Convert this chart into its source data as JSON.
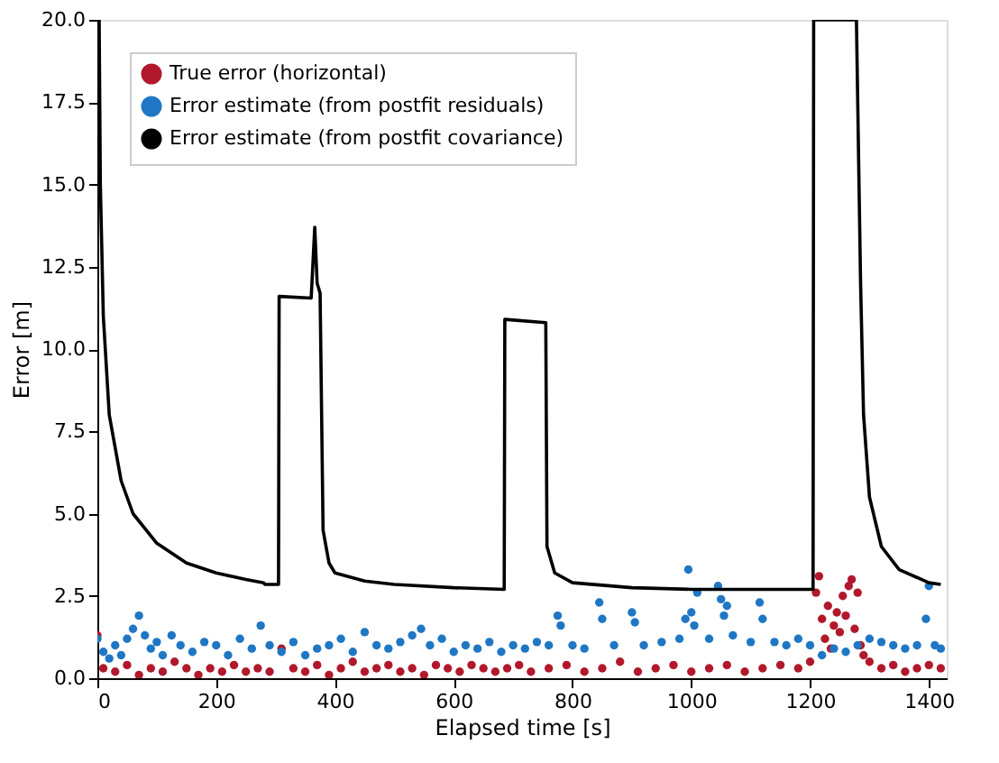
{
  "chart_data": {
    "type": "scatter",
    "xlabel": "Elapsed time [s]",
    "ylabel": "Error [m]",
    "xlim": [
      0,
      1430
    ],
    "ylim": [
      0,
      20
    ],
    "xticks": [
      0,
      200,
      400,
      600,
      800,
      1000,
      1200,
      1400
    ],
    "yticks": [
      {
        "value": 0,
        "label": "0.0"
      },
      {
        "value": 2.5,
        "label": "2.5"
      },
      {
        "value": 5,
        "label": "5.0"
      },
      {
        "value": 7.5,
        "label": "7.5"
      },
      {
        "value": 10,
        "label": "10.0"
      },
      {
        "value": 12.5,
        "label": "12.5"
      },
      {
        "value": 15,
        "label": "15.0"
      },
      {
        "value": 17.5,
        "label": "17.5"
      },
      {
        "value": 20,
        "label": "20.0"
      }
    ],
    "grid": false,
    "legend": "top left",
    "series": [
      {
        "name": "True error (horizontal)",
        "marker": "circle",
        "color": "#b2182b",
        "x": [
          0,
          10,
          30,
          50,
          70,
          90,
          110,
          130,
          150,
          170,
          190,
          210,
          230,
          250,
          270,
          290,
          310,
          330,
          350,
          370,
          390,
          410,
          430,
          450,
          470,
          490,
          510,
          530,
          550,
          570,
          590,
          610,
          630,
          650,
          670,
          690,
          710,
          730,
          760,
          790,
          820,
          850,
          880,
          910,
          940,
          970,
          1000,
          1030,
          1060,
          1090,
          1120,
          1150,
          1180,
          1200,
          1210,
          1215,
          1220,
          1225,
          1230,
          1235,
          1240,
          1245,
          1250,
          1255,
          1260,
          1265,
          1270,
          1275,
          1280,
          1285,
          1290,
          1300,
          1320,
          1340,
          1360,
          1380,
          1400,
          1420
        ],
        "values": [
          1.3,
          0.3,
          0.2,
          0.4,
          0.1,
          0.3,
          0.2,
          0.5,
          0.3,
          0.1,
          0.3,
          0.2,
          0.4,
          0.2,
          0.3,
          0.2,
          0.9,
          0.3,
          0.2,
          0.4,
          0.1,
          0.3,
          0.5,
          0.2,
          0.3,
          0.4,
          0.2,
          0.3,
          0.1,
          0.4,
          0.3,
          0.2,
          0.4,
          0.3,
          0.2,
          0.3,
          0.4,
          0.2,
          0.3,
          0.4,
          0.2,
          0.3,
          0.5,
          0.2,
          0.3,
          0.4,
          0.2,
          0.3,
          0.4,
          0.2,
          0.3,
          0.4,
          0.3,
          0.5,
          2.6,
          3.1,
          1.8,
          1.2,
          2.2,
          0.9,
          1.6,
          2.0,
          1.4,
          2.5,
          1.9,
          2.8,
          3.0,
          1.5,
          2.6,
          1.0,
          0.7,
          0.5,
          0.3,
          0.4,
          0.2,
          0.3,
          0.4,
          0.3
        ]
      },
      {
        "name": "Error estimate (from postfit residuals)",
        "marker": "circle",
        "color": "#1f77c4",
        "x": [
          0,
          10,
          20,
          30,
          40,
          50,
          60,
          70,
          80,
          90,
          100,
          110,
          125,
          140,
          160,
          180,
          200,
          220,
          240,
          260,
          275,
          290,
          310,
          330,
          350,
          370,
          390,
          410,
          430,
          450,
          470,
          490,
          510,
          530,
          545,
          560,
          580,
          600,
          620,
          640,
          660,
          680,
          700,
          720,
          740,
          760,
          775,
          780,
          800,
          820,
          845,
          850,
          870,
          900,
          905,
          920,
          950,
          980,
          990,
          995,
          1000,
          1005,
          1010,
          1030,
          1045,
          1050,
          1055,
          1060,
          1070,
          1100,
          1115,
          1120,
          1140,
          1160,
          1180,
          1200,
          1220,
          1240,
          1260,
          1280,
          1300,
          1320,
          1340,
          1360,
          1380,
          1395,
          1400,
          1410,
          1420
        ],
        "values": [
          1.2,
          0.8,
          0.6,
          1.0,
          0.7,
          1.2,
          1.5,
          1.9,
          1.3,
          0.9,
          1.1,
          0.7,
          1.3,
          1.0,
          0.8,
          1.1,
          1.0,
          0.7,
          1.2,
          0.9,
          1.6,
          1.0,
          0.8,
          1.1,
          0.7,
          0.9,
          1.0,
          1.2,
          0.8,
          1.4,
          1.0,
          0.9,
          1.1,
          1.3,
          1.5,
          1.0,
          1.2,
          0.8,
          1.0,
          0.9,
          1.1,
          0.8,
          1.0,
          0.9,
          1.1,
          1.0,
          1.9,
          1.6,
          1.0,
          0.9,
          2.3,
          1.8,
          1.0,
          2.0,
          1.7,
          1.0,
          1.1,
          1.2,
          1.8,
          3.3,
          2.0,
          1.6,
          2.6,
          1.2,
          2.8,
          2.4,
          1.9,
          2.2,
          1.3,
          1.1,
          2.3,
          1.8,
          1.1,
          1.0,
          1.2,
          1.0,
          0.7,
          0.9,
          0.8,
          1.0,
          1.2,
          1.1,
          1.0,
          0.9,
          1.0,
          1.8,
          2.8,
          1.0,
          0.9
        ]
      },
      {
        "name": "Error estimate (from postfit covariance)",
        "type": "line",
        "color": "#000000",
        "line_style": "solid",
        "x": [
          0,
          3,
          5,
          10,
          20,
          40,
          60,
          100,
          150,
          200,
          250,
          280,
          282,
          305,
          306,
          360,
          366,
          370,
          375,
          380,
          390,
          400,
          450,
          500,
          600,
          685,
          686,
          755,
          757,
          770,
          800,
          900,
          1000,
          1205,
          1206,
          1278,
          1285,
          1290,
          1300,
          1320,
          1350,
          1400,
          1420
        ],
        "values": [
          20,
          20,
          15,
          11,
          8,
          6,
          5,
          4.1,
          3.5,
          3.2,
          3.0,
          2.9,
          2.85,
          2.85,
          11.6,
          11.55,
          13.7,
          12.0,
          11.7,
          4.5,
          3.5,
          3.2,
          2.95,
          2.85,
          2.75,
          2.7,
          10.9,
          10.8,
          4.0,
          3.2,
          2.9,
          2.75,
          2.7,
          2.7,
          20,
          20,
          12,
          8,
          5.5,
          4,
          3.3,
          2.9,
          2.85
        ]
      }
    ]
  }
}
